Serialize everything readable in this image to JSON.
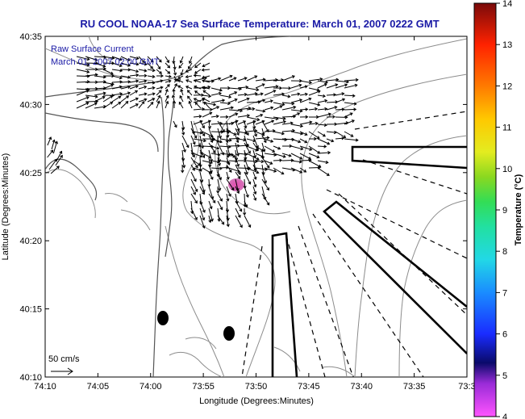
{
  "title": "RU COOL  NOAA-17  Sea Surface Temperature:  March 01, 2007 0222 GMT",
  "overlay": {
    "line1": "Raw Surface Current",
    "line2": "March 01, 2007 02:00 GMT"
  },
  "axes": {
    "xlabel": "Longitude (Degrees:Minutes)",
    "ylabel": "Latitude (Degrees:Minutes)",
    "x_ticks": [
      "74:10",
      "74:05",
      "74:00",
      "73:55",
      "73:50",
      "73:45",
      "73:40",
      "73:35",
      "73:3"
    ],
    "y_ticks": [
      "40:35",
      "40:30",
      "40:25",
      "40:20",
      "40:15",
      "40:10"
    ]
  },
  "scale_label": "50 cm/s",
  "colorbar": {
    "label": "Temperature (°C)",
    "ticks": [
      "14",
      "13",
      "12",
      "11",
      "10",
      "9",
      "8",
      "7",
      "6",
      "5",
      "4"
    ],
    "min": 4,
    "max": 14
  },
  "colors": {
    "title": "#1a1aa6",
    "warm_patch": "#d83ca0",
    "contour": "#8c8c8c"
  }
}
